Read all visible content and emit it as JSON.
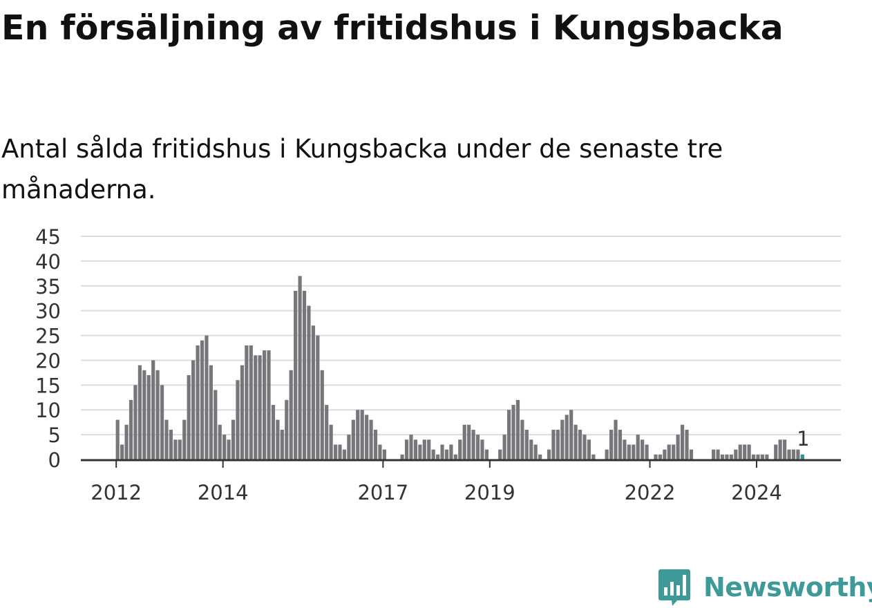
{
  "header": {
    "title": "En försäljning av fritidshus i Kungsbacka",
    "subtitle": "Antal sålda fritidshus i Kungsbacka under de senaste tre månaderna."
  },
  "brand": {
    "name": "Newsworthy",
    "color": "#3e9a98",
    "icon": "newsworthy-logo-icon"
  },
  "colors": {
    "bar": "#78767b",
    "highlight": "#2e9595",
    "grid": "#dcdcdc",
    "baseline": "#333333"
  },
  "chart_data": {
    "type": "bar",
    "title": "En försäljning av fritidshus i Kungsbacka",
    "subtitle": "Antal sålda fritidshus i Kungsbacka under de senaste tre månaderna.",
    "xlabel": "",
    "ylabel": "",
    "ylim": [
      0,
      45
    ],
    "yticks": [
      "0",
      "5",
      "10",
      "15",
      "20",
      "25",
      "30",
      "35",
      "40",
      "45"
    ],
    "xticks": [
      {
        "label": "2012",
        "date": "2012-01"
      },
      {
        "label": "2014",
        "date": "2014-01"
      },
      {
        "label": "2017",
        "date": "2017-01"
      },
      {
        "label": "2019",
        "date": "2019-01"
      },
      {
        "label": "2022",
        "date": "2022-01"
      },
      {
        "label": "2024",
        "date": "2024-01"
      }
    ],
    "grid": true,
    "start": "2012-01",
    "highlight_last": true,
    "last_label": "1",
    "values": [
      8,
      3,
      7,
      12,
      15,
      19,
      18,
      17,
      20,
      18,
      15,
      8,
      6,
      4,
      4,
      8,
      17,
      20,
      23,
      24,
      25,
      19,
      14,
      7,
      5,
      4,
      8,
      16,
      19,
      23,
      23,
      21,
      21,
      22,
      22,
      11,
      8,
      6,
      12,
      18,
      34,
      37,
      34,
      31,
      27,
      25,
      18,
      11,
      7,
      3,
      3,
      2,
      5,
      8,
      10,
      10,
      9,
      8,
      6,
      3,
      2,
      0,
      0,
      0,
      1,
      4,
      5,
      4,
      3,
      4,
      4,
      2,
      1,
      3,
      2,
      3,
      1,
      4,
      7,
      7,
      6,
      5,
      4,
      2,
      0,
      0,
      2,
      5,
      10,
      11,
      12,
      8,
      6,
      4,
      3,
      1,
      0,
      2,
      6,
      6,
      8,
      9,
      10,
      7,
      6,
      5,
      4,
      1,
      0,
      0,
      2,
      6,
      8,
      6,
      4,
      3,
      3,
      5,
      4,
      3,
      0,
      1,
      1,
      2,
      3,
      3,
      5,
      7,
      6,
      2,
      0,
      0,
      0,
      0,
      2,
      2,
      1,
      1,
      1,
      2,
      3,
      3,
      3,
      1,
      1,
      1,
      1,
      0,
      3,
      4,
      4,
      2,
      2,
      2,
      1
    ]
  }
}
